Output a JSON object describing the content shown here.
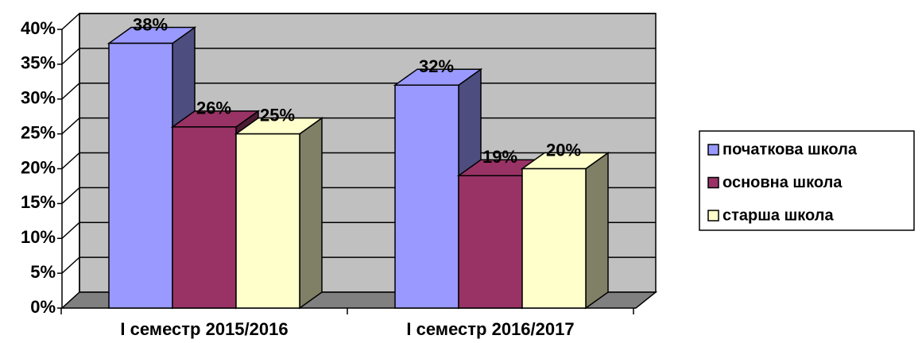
{
  "chart_data": {
    "type": "bar3d",
    "categories": [
      "I семестр 2015/2016",
      "I семестр 2016/2017"
    ],
    "series": [
      {
        "name": "початкова школа",
        "color": "#9999ff",
        "values": [
          38,
          32
        ],
        "value_labels": [
          "38%",
          "32%"
        ]
      },
      {
        "name": "основна школа",
        "color": "#993366",
        "values": [
          26,
          19
        ],
        "value_labels": [
          "26%",
          "19%"
        ]
      },
      {
        "name": "старша школа",
        "color": "#ffffcc",
        "values": [
          25,
          20
        ],
        "value_labels": [
          "25%",
          "20%"
        ]
      }
    ],
    "ylim": [
      0,
      40
    ],
    "yticks": [
      {
        "value": 0,
        "label": "0%"
      },
      {
        "value": 5,
        "label": "5%"
      },
      {
        "value": 10,
        "label": "10%"
      },
      {
        "value": 15,
        "label": "15%"
      },
      {
        "value": 20,
        "label": "20%"
      },
      {
        "value": 25,
        "label": "25%"
      },
      {
        "value": 30,
        "label": "30%"
      },
      {
        "value": 35,
        "label": "35%"
      },
      {
        "value": 40,
        "label": "40%"
      }
    ],
    "grid": true,
    "legend": "right"
  }
}
